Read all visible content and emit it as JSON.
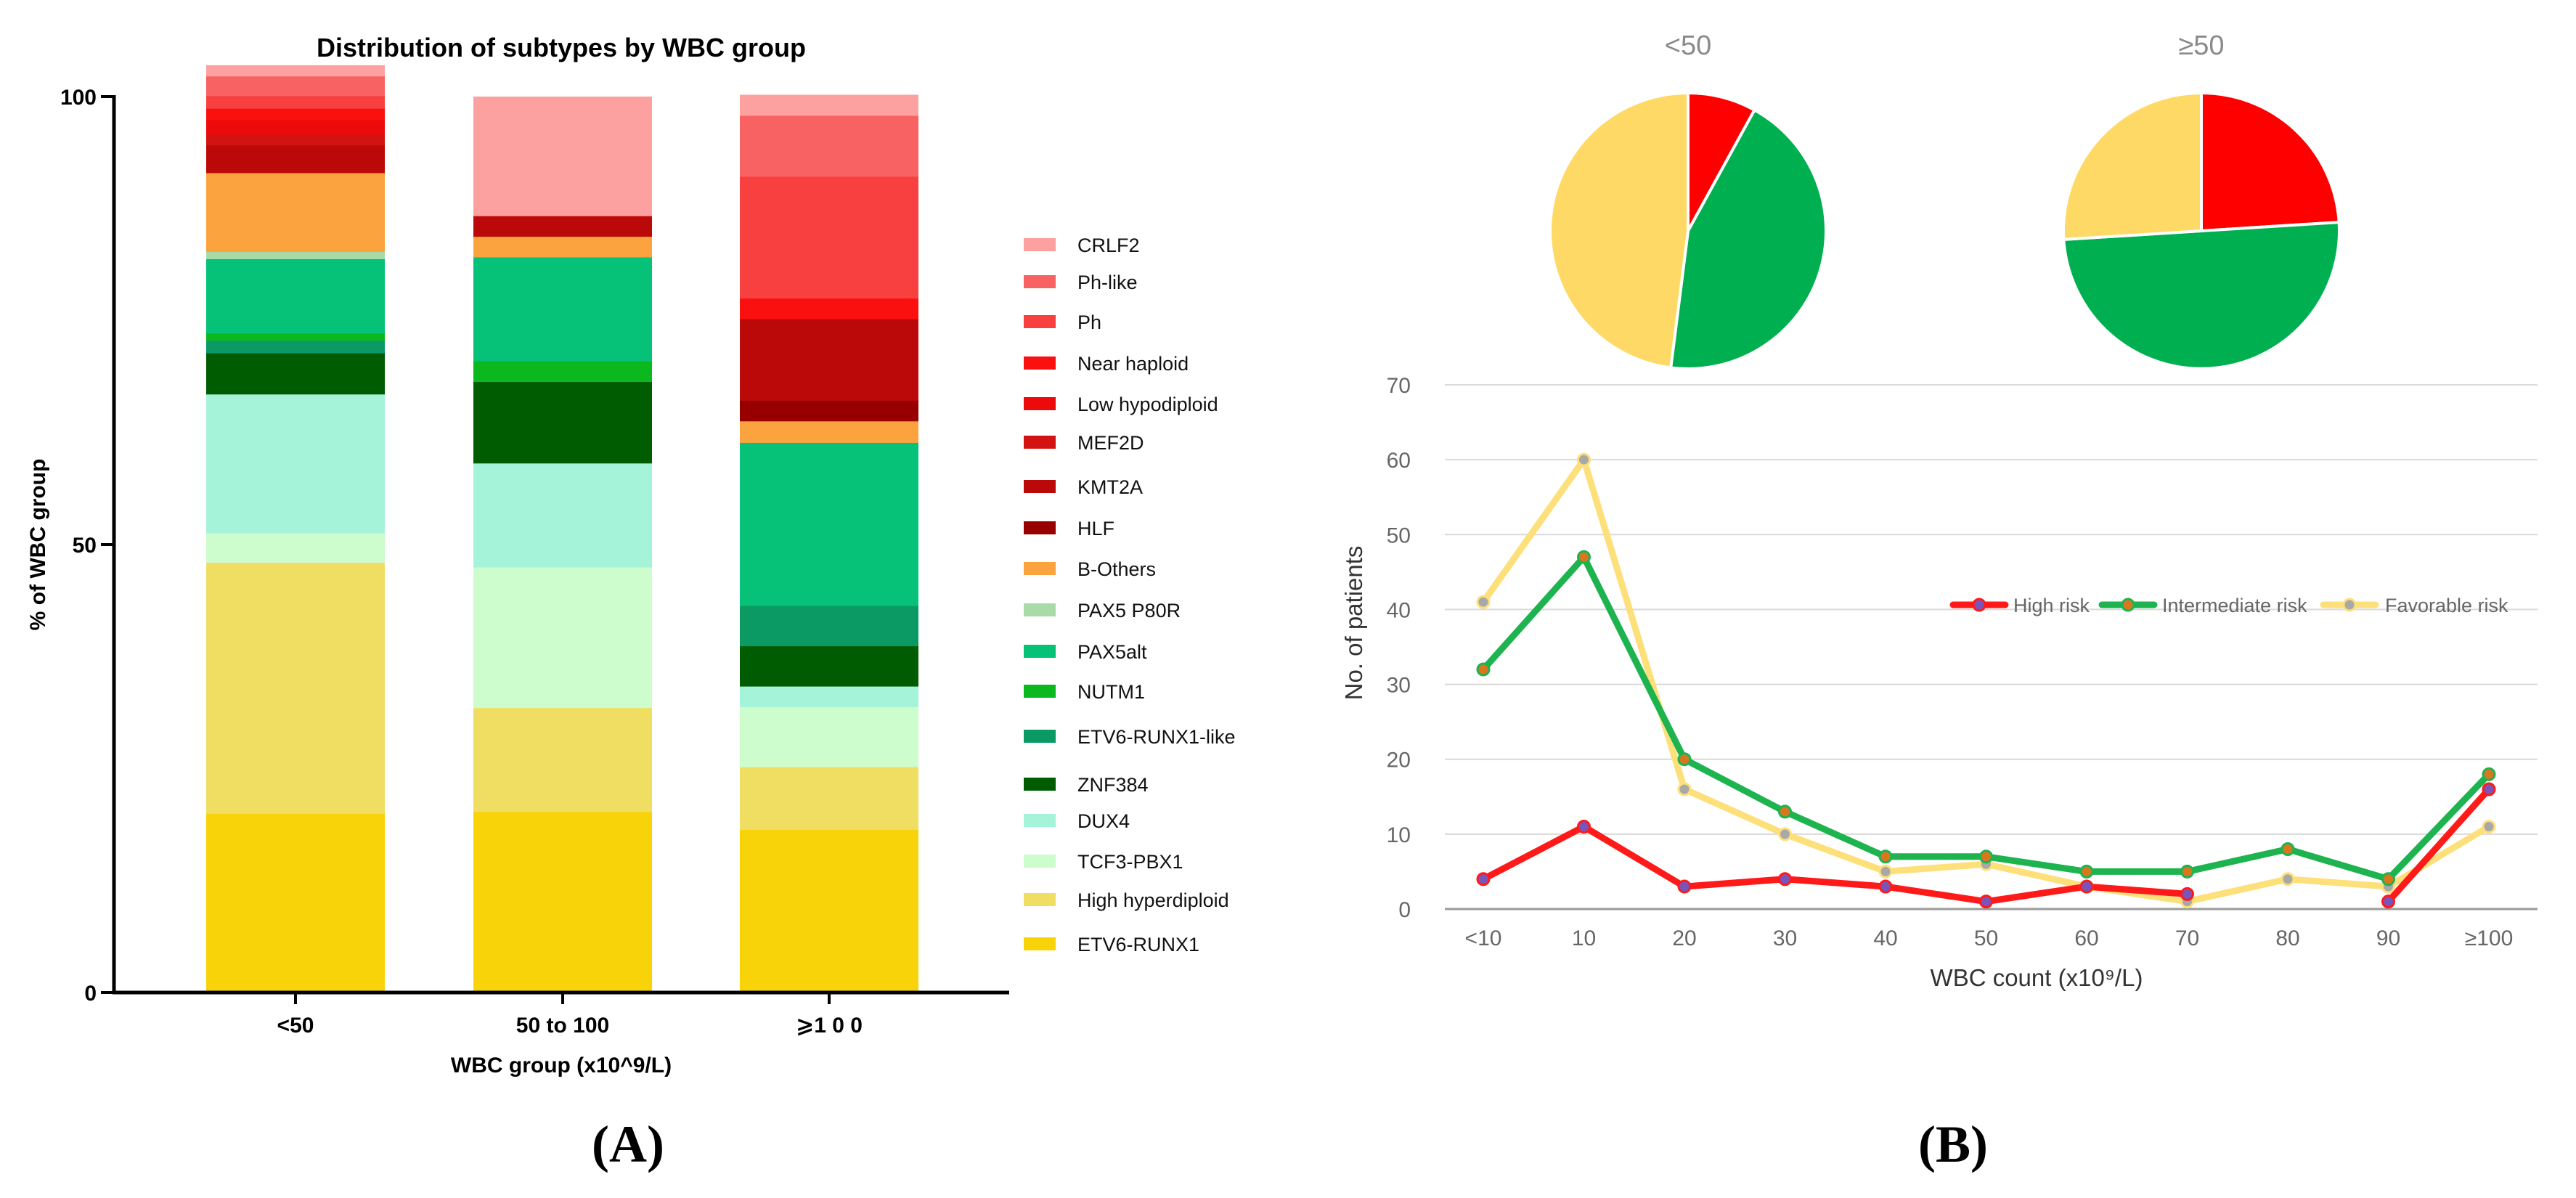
{
  "panels": {
    "a_label": "(A)",
    "b_label": "(B)"
  },
  "chart_data": [
    {
      "id": "stacked",
      "type": "bar",
      "stacked": true,
      "title": "Distribution of subtypes by WBC group",
      "xlabel": "WBC group (x10^9/L)",
      "ylabel": "% of WBC group",
      "ylim": [
        0,
        100
      ],
      "yticks": [
        0,
        50,
        100
      ],
      "categories": [
        "<50",
        "50 to 100",
        "⩾1 0 0"
      ],
      "legend_position": "right",
      "series": [
        {
          "name": "ETV6-RUNX1",
          "color": "#f9d30a",
          "values": [
            20.0,
            20.2,
            18.2
          ]
        },
        {
          "name": "High hyperdiploid",
          "color": "#f0de63",
          "values": [
            28.0,
            11.6,
            7.0
          ]
        },
        {
          "name": "TCF3-PBX1",
          "color": "#cdfccd",
          "values": [
            3.3,
            15.7,
            6.7
          ]
        },
        {
          "name": "DUX4",
          "color": "#a5f3d9",
          "values": [
            15.5,
            11.6,
            2.3
          ]
        },
        {
          "name": "ZNF384",
          "color": "#005c00",
          "values": [
            4.6,
            9.1,
            4.5
          ]
        },
        {
          "name": "ETV6-RUNX1-like",
          "color": "#0b9a64",
          "values": [
            1.4,
            0.0,
            4.5
          ]
        },
        {
          "name": "NUTM1",
          "color": "#0bb91e",
          "values": [
            0.8,
            2.3,
            0.0
          ]
        },
        {
          "name": "PAX5alt",
          "color": "#06c178",
          "values": [
            8.3,
            11.6,
            18.2
          ]
        },
        {
          "name": "PAX5 P80R",
          "color": "#a8dba8",
          "values": [
            0.8,
            0.0,
            0.0
          ]
        },
        {
          "name": "B-Others",
          "color": "#fba33e",
          "values": [
            8.8,
            2.3,
            2.4
          ]
        },
        {
          "name": "HLF",
          "color": "#980000",
          "values": [
            0.0,
            0.0,
            2.3
          ]
        },
        {
          "name": "KMT2A",
          "color": "#bb0909",
          "values": [
            3.1,
            2.3,
            9.1
          ]
        },
        {
          "name": "MEF2D",
          "color": "#d31212",
          "values": [
            1.2,
            0.0,
            0.0
          ]
        },
        {
          "name": "Low hypodiploid",
          "color": "#ec0a0a",
          "values": [
            1.6,
            0.0,
            0.0
          ]
        },
        {
          "name": "Near haploid",
          "color": "#fb1010",
          "values": [
            1.3,
            0.0,
            2.3
          ]
        },
        {
          "name": "Ph",
          "color": "#f84040",
          "values": [
            1.4,
            0.0,
            13.6
          ]
        },
        {
          "name": "Ph-like",
          "color": "#f86262",
          "values": [
            2.2,
            0.0,
            6.8
          ]
        },
        {
          "name": "CRLF2",
          "color": "#fca0a0",
          "values": [
            1.2,
            13.3,
            2.3
          ]
        }
      ]
    },
    {
      "id": "pie_low",
      "type": "pie",
      "title": "<50",
      "slices": [
        {
          "name": "High risk",
          "value": 8,
          "color": "#ff0000"
        },
        {
          "name": "Intermediate risk",
          "value": 44,
          "color": "#00b050"
        },
        {
          "name": "Favorable risk",
          "value": 48,
          "color": "#ffd966"
        }
      ]
    },
    {
      "id": "pie_high",
      "type": "pie",
      "title": "≥50",
      "slices": [
        {
          "name": "High risk",
          "value": 24,
          "color": "#ff0000"
        },
        {
          "name": "Intermediate risk",
          "value": 50,
          "color": "#00b050"
        },
        {
          "name": "Favorable risk",
          "value": 26,
          "color": "#ffd966"
        }
      ]
    },
    {
      "id": "line",
      "type": "line",
      "xlabel": "WBC count (x10⁹/L)",
      "ylabel": "No. of patients",
      "ylim": [
        0,
        70
      ],
      "yticks": [
        0,
        10,
        20,
        30,
        40,
        50,
        60,
        70
      ],
      "categories": [
        "<10",
        "10",
        "20",
        "30",
        "40",
        "50",
        "60",
        "70",
        "80",
        "90",
        "≥100"
      ],
      "legend_position": "right",
      "series": [
        {
          "name": "High risk",
          "color": "#ff1a1a",
          "marker_color": "#7a54b8",
          "values": [
            4,
            11,
            3,
            4,
            3,
            1,
            3,
            2,
            null,
            1,
            16
          ]
        },
        {
          "name": "Intermediate risk",
          "color": "#1db34f",
          "marker_color": "#d9771f",
          "values": [
            32,
            47,
            20,
            13,
            7,
            7,
            5,
            5,
            8,
            4,
            18
          ]
        },
        {
          "name": "Favorable risk",
          "color": "#fde07a",
          "marker_color": "#a8a8a8",
          "values": [
            41,
            60,
            16,
            10,
            5,
            6,
            3,
            1,
            4,
            3,
            11
          ]
        }
      ]
    }
  ]
}
